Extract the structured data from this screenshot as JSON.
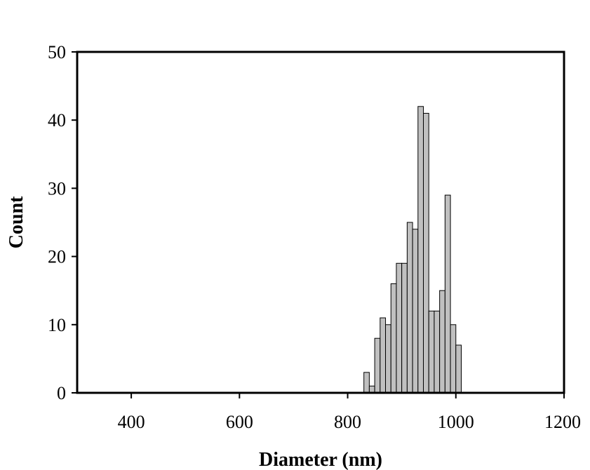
{
  "chart_data": {
    "type": "bar",
    "title": "",
    "xlabel": "Diameter (nm)",
    "ylabel": "Count",
    "xlim": [
      300,
      1200
    ],
    "ylim": [
      0,
      50
    ],
    "xticks": [
      400,
      600,
      800,
      1000,
      1200
    ],
    "yticks": [
      0,
      10,
      20,
      30,
      40,
      50
    ],
    "grid": false,
    "legend": "none",
    "bar_color": "#c0c0c0",
    "edge_color": "#000000",
    "bin_width": 10,
    "bins": [
      {
        "x": 835,
        "count": 3
      },
      {
        "x": 845,
        "count": 1
      },
      {
        "x": 855,
        "count": 8
      },
      {
        "x": 865,
        "count": 11
      },
      {
        "x": 875,
        "count": 10
      },
      {
        "x": 885,
        "count": 16
      },
      {
        "x": 895,
        "count": 19
      },
      {
        "x": 905,
        "count": 19
      },
      {
        "x": 915,
        "count": 25
      },
      {
        "x": 925,
        "count": 24
      },
      {
        "x": 935,
        "count": 42
      },
      {
        "x": 945,
        "count": 41
      },
      {
        "x": 955,
        "count": 12
      },
      {
        "x": 965,
        "count": 12
      },
      {
        "x": 975,
        "count": 15
      },
      {
        "x": 985,
        "count": 29
      },
      {
        "x": 995,
        "count": 10
      },
      {
        "x": 1005,
        "count": 7
      }
    ]
  }
}
